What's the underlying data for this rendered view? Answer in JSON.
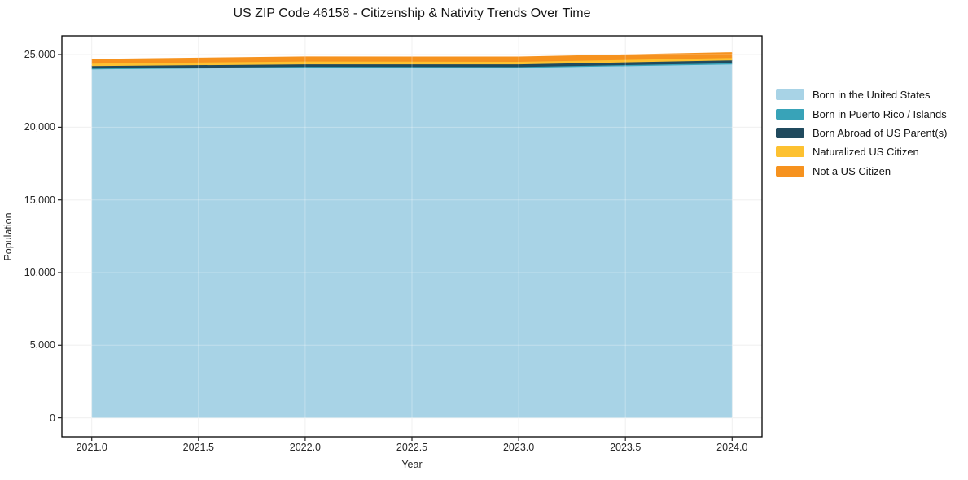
{
  "chart_data": {
    "type": "area",
    "stacked": true,
    "title": "US ZIP Code 46158 - Citizenship & Nativity Trends Over Time",
    "xlabel": "Year",
    "ylabel": "Population",
    "grid": true,
    "legend_position": "right-outside",
    "x": [
      2021,
      2022,
      2023,
      2024
    ],
    "x_ticks": [
      "2021.0",
      "2021.5",
      "2022.0",
      "2022.5",
      "2023.0",
      "2023.5",
      "2024.0"
    ],
    "x_tick_values": [
      2021.0,
      2021.5,
      2022.0,
      2022.5,
      2023.0,
      2023.5,
      2024.0
    ],
    "y_ticks": [
      "0",
      "5,000",
      "10,000",
      "15,000",
      "20,000",
      "25,000"
    ],
    "y_tick_values": [
      0,
      5000,
      10000,
      15000,
      20000,
      25000
    ],
    "xlim": [
      2020.86,
      2024.14
    ],
    "ylim": [
      -1310,
      26290
    ],
    "series": [
      {
        "name": "Born in the United States",
        "color": "#a8d3e6",
        "values": [
          23980,
          24100,
          24080,
          24320
        ]
      },
      {
        "name": "Born in Puerto Rico / Islands",
        "color": "#38a3b8",
        "values": [
          55,
          55,
          60,
          85
        ]
      },
      {
        "name": "Born Abroad of US Parent(s)",
        "color": "#204a5e",
        "values": [
          170,
          170,
          185,
          195
        ]
      },
      {
        "name": "Naturalized US Citizen",
        "color": "#fdc131",
        "values": [
          170,
          195,
          175,
          170
        ]
      },
      {
        "name": "Not a US Citizen",
        "color": "#f6921e",
        "values": [
          280,
          305,
          320,
          350
        ]
      }
    ],
    "totals": [
      24655,
      24825,
      24820,
      25120
    ],
    "colors": {
      "grid": "#ebebeb",
      "plot_border": "#000000",
      "tick": "#262626",
      "text": "#151515"
    }
  }
}
